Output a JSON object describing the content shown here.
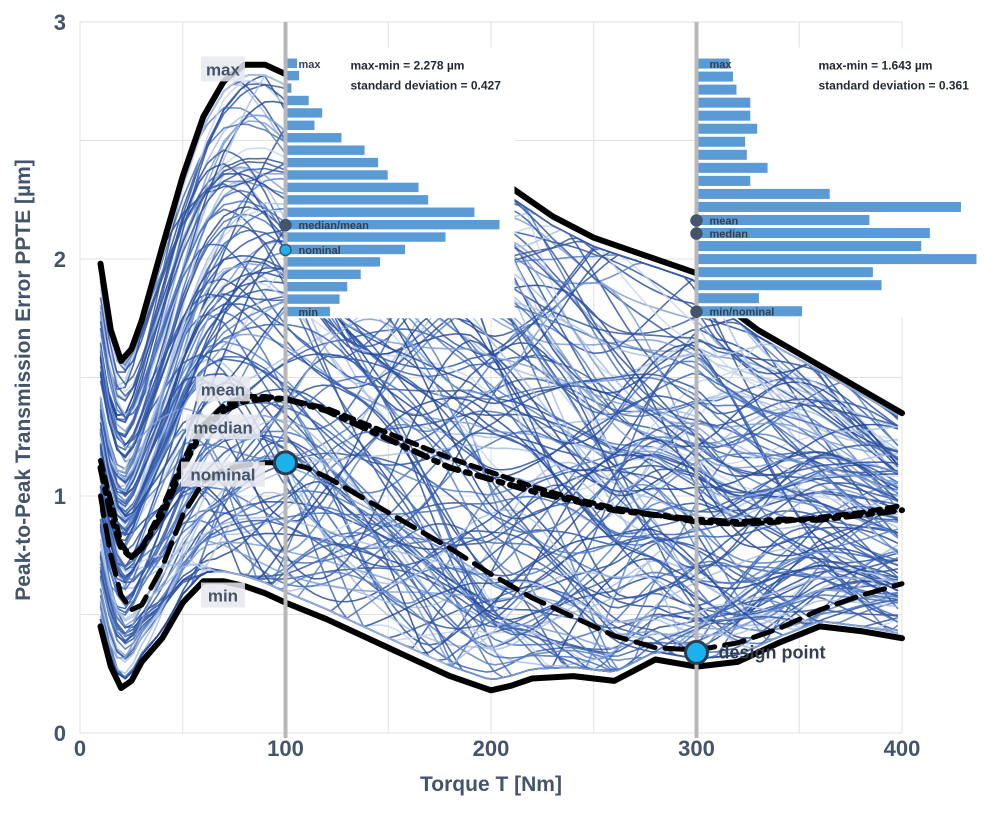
{
  "chart_data": {
    "type": "line",
    "xlabel": "Torque T [Nm]",
    "ylabel": "Peak-to-Peak Transmission Error PPTE [µm]",
    "xlim": [
      0,
      400
    ],
    "ylim": [
      0,
      3
    ],
    "x_ticks": [
      "0",
      "100",
      "200",
      "300",
      "400"
    ],
    "y_ticks": [
      "0",
      "1",
      "2",
      "3"
    ],
    "grid": true,
    "colors": {
      "ensemble": "#3b5fa6",
      "envelope": "#000000",
      "marker": "#1ab2ee",
      "histogram": "#5b9bd5",
      "reference_line": "#b8b8b8"
    },
    "series": [
      {
        "name": "max",
        "style": "solid-black",
        "x": [
          10,
          15,
          20,
          25,
          30,
          40,
          50,
          60,
          70,
          80,
          90,
          100,
          110,
          120,
          130,
          140,
          150,
          170,
          190,
          210,
          230,
          250,
          270,
          290,
          300,
          310,
          330,
          350,
          370,
          390,
          400
        ],
        "y": [
          1.98,
          1.7,
          1.57,
          1.62,
          1.74,
          2.05,
          2.35,
          2.6,
          2.75,
          2.82,
          2.82,
          2.78,
          2.7,
          2.6,
          2.5,
          2.45,
          2.42,
          2.4,
          2.4,
          2.3,
          2.18,
          2.09,
          2.03,
          1.97,
          1.94,
          1.83,
          1.7,
          1.6,
          1.5,
          1.4,
          1.35
        ]
      },
      {
        "name": "min",
        "style": "solid-black",
        "x": [
          10,
          15,
          20,
          25,
          30,
          40,
          50,
          60,
          70,
          80,
          90,
          100,
          120,
          140,
          160,
          180,
          200,
          210,
          220,
          240,
          260,
          280,
          300,
          320,
          340,
          360,
          380,
          400
        ],
        "y": [
          0.45,
          0.28,
          0.19,
          0.22,
          0.3,
          0.4,
          0.55,
          0.64,
          0.64,
          0.62,
          0.59,
          0.55,
          0.48,
          0.4,
          0.32,
          0.24,
          0.18,
          0.2,
          0.23,
          0.24,
          0.22,
          0.31,
          0.28,
          0.3,
          0.38,
          0.45,
          0.43,
          0.4
        ]
      },
      {
        "name": "mean",
        "style": "dash-dot-black",
        "x": [
          10,
          15,
          20,
          25,
          30,
          40,
          50,
          60,
          70,
          80,
          90,
          100,
          120,
          140,
          160,
          180,
          200,
          220,
          240,
          260,
          280,
          300,
          320,
          340,
          360,
          380,
          400
        ],
        "y": [
          1.12,
          0.92,
          0.78,
          0.74,
          0.78,
          0.92,
          1.12,
          1.28,
          1.36,
          1.4,
          1.41,
          1.41,
          1.36,
          1.28,
          1.2,
          1.12,
          1.07,
          1.02,
          0.98,
          0.94,
          0.92,
          0.9,
          0.89,
          0.9,
          0.9,
          0.92,
          0.94
        ]
      },
      {
        "name": "median",
        "style": "dash-black",
        "x": [
          10,
          15,
          20,
          25,
          30,
          40,
          50,
          60,
          70,
          80,
          90,
          100,
          120,
          140,
          160,
          180,
          200,
          220,
          240,
          260,
          280,
          300,
          320,
          340,
          360,
          380,
          400
        ],
        "y": [
          1.15,
          0.98,
          0.8,
          0.74,
          0.78,
          0.95,
          1.15,
          1.3,
          1.38,
          1.42,
          1.42,
          1.41,
          1.37,
          1.3,
          1.23,
          1.16,
          1.1,
          1.04,
          0.99,
          0.95,
          0.92,
          0.89,
          0.88,
          0.89,
          0.91,
          0.93,
          0.96
        ]
      },
      {
        "name": "nominal",
        "style": "long-dash-black",
        "x": [
          10,
          15,
          20,
          25,
          30,
          40,
          50,
          60,
          70,
          80,
          90,
          100,
          110,
          120,
          140,
          160,
          180,
          200,
          220,
          240,
          260,
          280,
          300,
          320,
          340,
          360,
          380,
          400
        ],
        "y": [
          1.0,
          0.75,
          0.58,
          0.52,
          0.54,
          0.7,
          0.92,
          1.06,
          1.11,
          1.13,
          1.14,
          1.14,
          1.12,
          1.08,
          0.98,
          0.88,
          0.78,
          0.67,
          0.57,
          0.49,
          0.41,
          0.36,
          0.35,
          0.38,
          0.44,
          0.52,
          0.58,
          0.63
        ]
      }
    ],
    "curve_labels": [
      {
        "text": "max",
        "x": 72,
        "y": 2.8
      },
      {
        "text": "mean",
        "x": 72,
        "y": 1.45
      },
      {
        "text": "median",
        "x": 72,
        "y": 1.29
      },
      {
        "text": "nominal",
        "x": 72,
        "y": 1.09
      },
      {
        "text": "min",
        "x": 72,
        "y": 0.58
      }
    ],
    "reference_lines": [
      100,
      300
    ],
    "markers": [
      {
        "name": "nominal-point",
        "x": 100,
        "y": 1.14,
        "label": ""
      },
      {
        "name": "design-point",
        "x": 300,
        "y": 0.34,
        "label": "design point"
      }
    ],
    "histograms": [
      {
        "at_torque": 100,
        "stats": [
          "max-min = 2.278 µm",
          "standard deviation = 0.427"
        ],
        "ppte_top": 2.85,
        "ppte_bottom": 1.75,
        "counts": [
          5,
          6,
          2,
          11,
          18,
          14,
          28,
          40,
          47,
          52,
          68,
          73,
          97,
          110,
          82,
          61,
          48,
          38,
          31,
          27,
          22
        ],
        "markers": [
          {
            "label": "max",
            "bin": 0,
            "dot": false
          },
          {
            "label": "median/mean",
            "bin": 13,
            "dot": true
          },
          {
            "label": "nominal",
            "bin": 15,
            "dot": true
          },
          {
            "label": "min",
            "bin": 20,
            "dot": false
          }
        ]
      },
      {
        "at_torque": 300,
        "stats": [
          "max-min = 1.643 µm",
          "standard deviation = 0.361"
        ],
        "ppte_top": 2.85,
        "ppte_bottom": 1.75,
        "counts": [
          18,
          20,
          22,
          30,
          30,
          34,
          27,
          28,
          40,
          30,
          76,
          152,
          99,
          134,
          129,
          161,
          101,
          106,
          35,
          60
        ],
        "markers": [
          {
            "label": "max",
            "bin": 0,
            "dot": false
          },
          {
            "label": "mean",
            "bin": 12,
            "dot": true
          },
          {
            "label": "median",
            "bin": 13,
            "dot": true
          },
          {
            "label": "min/nominal",
            "bin": 19,
            "dot": true
          }
        ]
      }
    ]
  }
}
